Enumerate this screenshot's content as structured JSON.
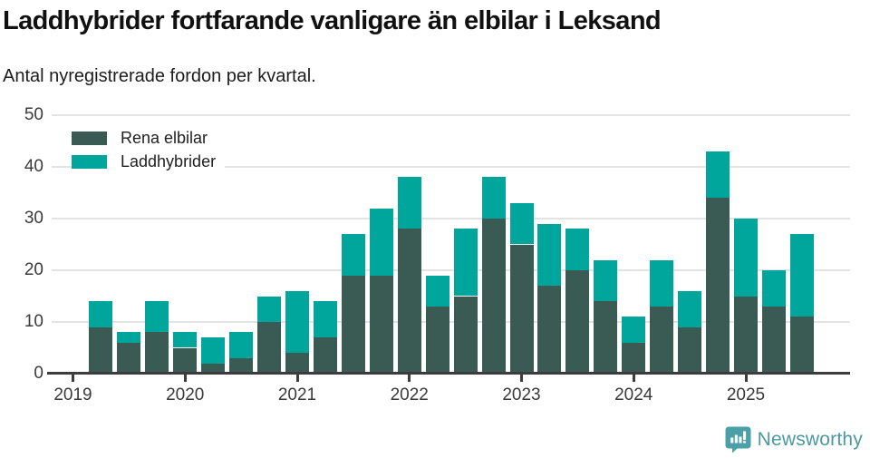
{
  "header": {
    "title": "Laddhybrider fortfarande vanligare än elbilar i Leksand",
    "subtitle": "Antal nyregistrerade fordon per kvartal."
  },
  "legend": {
    "items": [
      {
        "label": "Rena elbilar",
        "color": "#3a5b53"
      },
      {
        "label": "Laddhybrider",
        "color": "#00a59b"
      }
    ]
  },
  "chart_data": {
    "type": "bar",
    "stacked": true,
    "title": "Laddhybrider fortfarande vanligare än elbilar i Leksand",
    "subtitle": "Antal nyregistrerade fordon per kvartal.",
    "x": [
      "2019 Q2",
      "2019 Q3",
      "2019 Q4",
      "2020 Q1",
      "2020 Q2",
      "2020 Q3",
      "2020 Q4",
      "2021 Q1",
      "2021 Q2",
      "2021 Q3",
      "2021 Q4",
      "2022 Q1",
      "2022 Q2",
      "2022 Q3",
      "2022 Q4",
      "2023 Q1",
      "2023 Q2",
      "2023 Q3",
      "2023 Q4",
      "2024 Q1",
      "2024 Q2",
      "2024 Q3",
      "2024 Q4",
      "2025 Q1",
      "2025 Q2",
      "2025 Q3"
    ],
    "series": [
      {
        "name": "Rena elbilar",
        "color": "#3a5b53",
        "values": [
          9,
          6,
          8,
          5,
          2,
          3,
          10,
          4,
          7,
          19,
          19,
          28,
          13,
          15,
          30,
          25,
          17,
          20,
          14,
          6,
          13,
          9,
          34,
          15,
          13,
          11
        ]
      },
      {
        "name": "Laddhybrider",
        "color": "#00a59b",
        "values": [
          5,
          2,
          6,
          3,
          5,
          5,
          5,
          12,
          7,
          8,
          13,
          10,
          6,
          13,
          8,
          8,
          12,
          8,
          8,
          5,
          9,
          7,
          9,
          15,
          7,
          16
        ]
      }
    ],
    "totals": [
      14,
      8,
      14,
      8,
      7,
      8,
      15,
      16,
      14,
      27,
      32,
      38,
      19,
      28,
      38,
      33,
      29,
      28,
      22,
      11,
      22,
      16,
      43,
      30,
      20,
      27
    ],
    "x_year_labels": [
      "2019",
      "2020",
      "2021",
      "2022",
      "2023",
      "2024",
      "2025"
    ],
    "y_ticks": [
      0,
      10,
      20,
      30,
      40,
      50
    ],
    "ylim": [
      0,
      50
    ],
    "grid": "horizontal",
    "legend_position": "top-left-inside",
    "xlabel": "",
    "ylabel": ""
  },
  "footer": {
    "brand": "Newsworthy",
    "brand_color": "#4b98a1",
    "icon": "newsworthy-chart-bubble-icon",
    "icon_color": "#4aa0a6"
  }
}
